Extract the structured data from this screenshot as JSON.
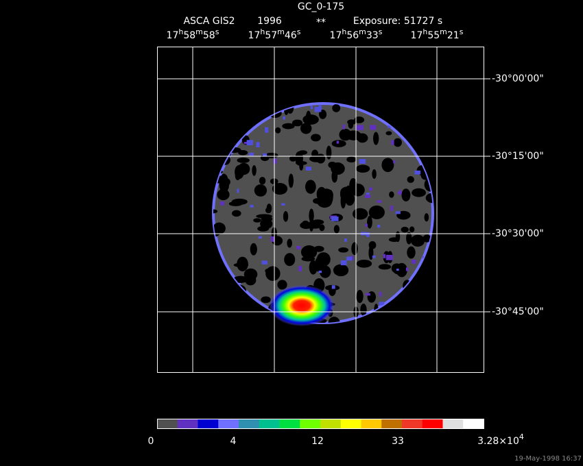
{
  "header": {
    "title": "GC_0-175",
    "instrument": "ASCA GIS2",
    "year": "1996",
    "flag": "**",
    "exposure": "Exposure: 51727 s"
  },
  "ra_ticks": [
    [
      "17",
      "h",
      "58",
      "m",
      "58",
      "s"
    ],
    [
      "17",
      "h",
      "57",
      "m",
      "46",
      "s"
    ],
    [
      "17",
      "h",
      "56",
      "m",
      "33",
      "s"
    ],
    [
      "17",
      "h",
      "55",
      "m",
      "21",
      "s"
    ]
  ],
  "dec_ticks": [
    "-30°00'00\"",
    "-30°15'00\"",
    "-30°30'00\"",
    "-30°45'00\""
  ],
  "colorbar": {
    "colors": [
      "#505050",
      "#6030c0",
      "#0000d0",
      "#7070ff",
      "#3090b0",
      "#00c090",
      "#00e040",
      "#70ff00",
      "#c0e000",
      "#ffff00",
      "#ffc800",
      "#c07000",
      "#f03828",
      "#ff0000",
      "#e0e0e0",
      "#ffffff"
    ],
    "labels": [
      "0",
      "4",
      "12",
      "33"
    ],
    "max_label": [
      "3.28×10",
      "4"
    ]
  },
  "footer": "19-May-1998 16:37"
}
